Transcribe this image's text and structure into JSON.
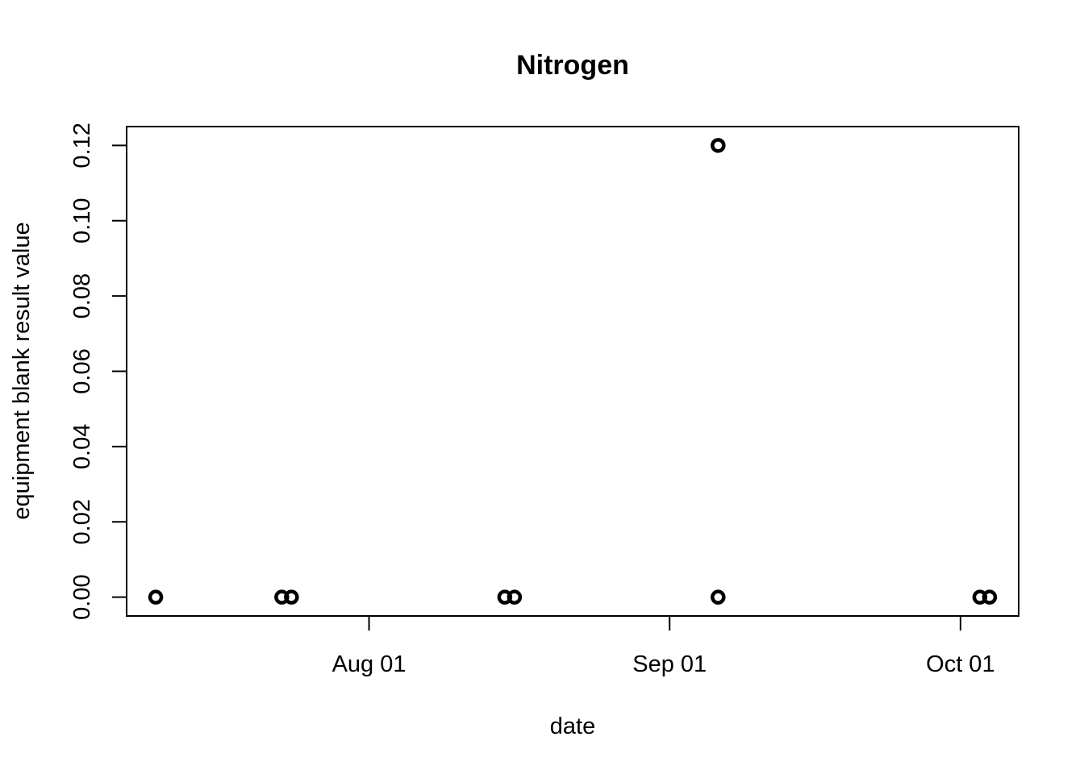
{
  "chart_data": {
    "type": "scatter",
    "title": "Nitrogen",
    "xlabel": "date",
    "ylabel": "equipment blank result value",
    "xlim": [
      "2024-07-07",
      "2024-10-07"
    ],
    "ylim": [
      -0.005,
      0.125
    ],
    "x_ticks": [
      {
        "date": "2024-08-01",
        "label": "Aug 01"
      },
      {
        "date": "2024-09-01",
        "label": "Sep 01"
      },
      {
        "date": "2024-10-01",
        "label": "Oct 01"
      }
    ],
    "y_ticks": [
      {
        "value": 0.0,
        "label": "0.00"
      },
      {
        "value": 0.02,
        "label": "0.02"
      },
      {
        "value": 0.04,
        "label": "0.04"
      },
      {
        "value": 0.06,
        "label": "0.06"
      },
      {
        "value": 0.08,
        "label": "0.08"
      },
      {
        "value": 0.1,
        "label": "0.10"
      },
      {
        "value": 0.12,
        "label": "0.12"
      }
    ],
    "points": [
      {
        "x": "2024-07-10",
        "y": 0.0
      },
      {
        "x": "2024-07-23",
        "y": 0.0
      },
      {
        "x": "2024-07-24",
        "y": 0.0
      },
      {
        "x": "2024-08-15",
        "y": 0.0
      },
      {
        "x": "2024-08-16",
        "y": 0.0
      },
      {
        "x": "2024-09-06",
        "y": 0.0
      },
      {
        "x": "2024-09-06",
        "y": 0.12
      },
      {
        "x": "2024-10-03",
        "y": 0.0
      },
      {
        "x": "2024-10-04",
        "y": 0.0
      }
    ],
    "grid": false,
    "legend": "none"
  }
}
